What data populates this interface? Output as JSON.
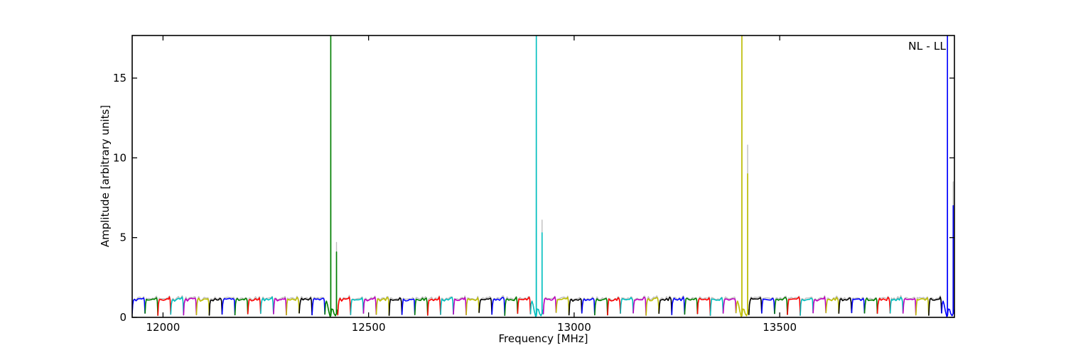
{
  "figure": {
    "background": "#ffffff"
  },
  "chart_data": {
    "type": "line",
    "title": "",
    "annotation": "NL - LL",
    "xlabel": "Frequency [MHz]",
    "ylabel": "Amplitude [arbitrary units]",
    "xlim": [
      11925,
      13925
    ],
    "ylim": [
      0,
      17.67
    ],
    "xticks": [
      12000,
      12500,
      13000,
      13500
    ],
    "yticks": [
      0,
      5,
      10,
      15
    ],
    "grid": false,
    "legend_position": "none",
    "tick_direction": "in",
    "frame_color": "#000000",
    "text_color": "#000000",
    "color_cycle": [
      "#0000ff",
      "#008000",
      "#ff0000",
      "#00bfbf",
      "#bf00bf",
      "#bfbf00",
      "#000000"
    ],
    "gray_trace_color": "#bfbfbf",
    "subbands": {
      "count": 64,
      "width_mhz": 31.25,
      "start_mhz": 11925,
      "plateau_amp": 1.15,
      "notch_amp": 0.2,
      "color_order": "blue-green-red-cyan-magenta-yellow-black-repeat"
    },
    "baseline_shape": [
      [
        0,
        0.2
      ],
      [
        0.045,
        0.8
      ],
      [
        0.1,
        1.09
      ],
      [
        0.18,
        1.14
      ],
      [
        0.3,
        1.08
      ],
      [
        0.45,
        1.11
      ],
      [
        0.6,
        1.13
      ],
      [
        0.72,
        1.12
      ],
      [
        0.83,
        1.19
      ],
      [
        0.9,
        1.22
      ],
      [
        0.955,
        1.02
      ],
      [
        1,
        0.2
      ]
    ],
    "spikes": [
      {
        "name": "tone-green",
        "subband_index": 15,
        "color": "#008000",
        "main_freq_mhz": 12408,
        "main_reaches_top": true,
        "secondary_freq_mhz": 12422,
        "secondary_amp": 4.1,
        "secondary_gray_amp": 4.7
      },
      {
        "name": "tone-cyan",
        "subband_index": 31,
        "color": "#00bfbf",
        "main_freq_mhz": 12908,
        "main_reaches_top": true,
        "secondary_freq_mhz": 12922,
        "secondary_amp": 5.3,
        "secondary_gray_amp": 6.1
      },
      {
        "name": "tone-yellow",
        "subband_index": 47,
        "color": "#bfbf00",
        "main_freq_mhz": 13408,
        "main_reaches_top": true,
        "secondary_freq_mhz": 13422,
        "secondary_amp": 9.0,
        "secondary_gray_amp": 10.8
      },
      {
        "name": "tone-blue",
        "subband_index": 63,
        "color": "#0000ff",
        "main_freq_mhz": 13908,
        "main_reaches_top": true,
        "secondary_freq_mhz": 13922,
        "secondary_amp": 7.0,
        "secondary_gray_amp": 8.5
      }
    ]
  }
}
